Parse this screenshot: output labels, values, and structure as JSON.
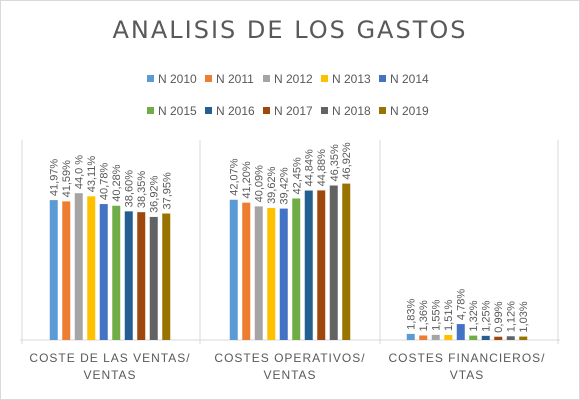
{
  "chart_data": {
    "type": "bar",
    "title": "ANALISIS DE LOS GASTOS",
    "categories": [
      [
        "COSTE DE LAS VENTAS/",
        "VENTAS"
      ],
      [
        "COSTES OPERATIVOS/",
        "VENTAS"
      ],
      [
        "COSTES FINANCIEROS/",
        "VTAS"
      ]
    ],
    "series": [
      {
        "name": "N 2010",
        "color": "#5b9bd5",
        "values": [
          41.97,
          42.07,
          1.83
        ],
        "labels": [
          "41,97%",
          "42,07%",
          "1,83%"
        ]
      },
      {
        "name": "N 2011",
        "color": "#ed7d31",
        "values": [
          41.59,
          41.2,
          1.36
        ],
        "labels": [
          "41,59%",
          "41,20%",
          "1,36%"
        ]
      },
      {
        "name": "N 2012",
        "color": "#a5a5a5",
        "values": [
          44.05,
          40.09,
          1.55
        ],
        "labels": [
          "44,0 %",
          "40,09%",
          "1,55%"
        ]
      },
      {
        "name": "N 2013",
        "color": "#ffc000",
        "values": [
          43.11,
          39.62,
          1.51
        ],
        "labels": [
          "43,11%",
          "39,62%",
          "1,51%"
        ]
      },
      {
        "name": "N 2014",
        "color": "#4472c4",
        "values": [
          40.78,
          39.42,
          4.78
        ],
        "labels": [
          "40,78%",
          "39,42%",
          "4,78%"
        ]
      },
      {
        "name": "N 2015",
        "color": "#70ad47",
        "values": [
          40.28,
          42.45,
          1.32
        ],
        "labels": [
          "40,28%",
          "42,45%",
          "1,32%"
        ]
      },
      {
        "name": "N 2016",
        "color": "#255e91",
        "values": [
          38.6,
          44.84,
          1.25
        ],
        "labels": [
          "38,60%",
          "44,84%",
          "1,25%"
        ]
      },
      {
        "name": "N 2017",
        "color": "#9e480e",
        "values": [
          38.35,
          44.88,
          0.99
        ],
        "labels": [
          "38,35%",
          "44,88%",
          "0,99%"
        ]
      },
      {
        "name": "N 2018",
        "color": "#636363",
        "values": [
          36.92,
          46.35,
          1.12
        ],
        "labels": [
          "36,92%",
          "46,35%",
          "1,12%"
        ]
      },
      {
        "name": "N 2019",
        "color": "#997300",
        "values": [
          37.95,
          46.92,
          1.03
        ],
        "labels": [
          "37,95%",
          "46,92%",
          "1,03%"
        ]
      }
    ],
    "ylim": [
      0,
      60
    ],
    "grid": false,
    "legend_position": "top"
  }
}
